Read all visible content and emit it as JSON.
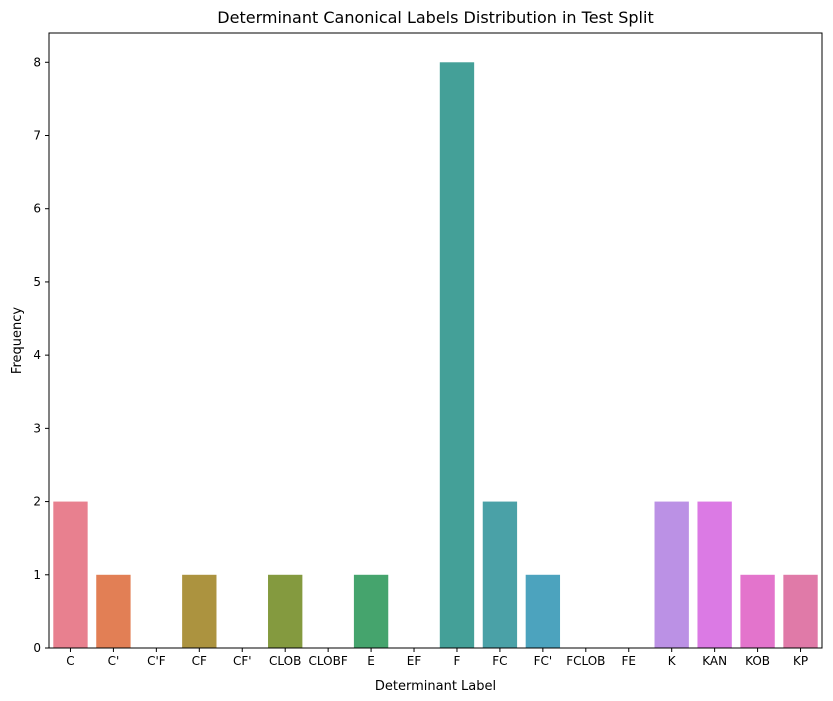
{
  "chart_data": {
    "type": "bar",
    "title": "Determinant Canonical Labels Distribution in Test Split",
    "xlabel": "Determinant Label",
    "ylabel": "Frequency",
    "categories": [
      "C",
      "C'",
      "C'F",
      "CF",
      "CF'",
      "CLOB",
      "CLOBF",
      "E",
      "EF",
      "F",
      "FC",
      "FC'",
      "FCLOB",
      "FE",
      "K",
      "KAN",
      "KOB",
      "KP"
    ],
    "values": [
      2,
      1,
      0,
      1,
      0,
      1,
      0,
      1,
      0,
      8,
      2,
      1,
      0,
      0,
      2,
      2,
      1,
      1
    ],
    "colors": [
      "#e8808f",
      "#e27f55",
      "#c09740",
      "#ac933f",
      "#99993c",
      "#849a3f",
      "#6a9b3f",
      "#45a46d",
      "#48a48e",
      "#44a098",
      "#4aa1a7",
      "#4ca3be",
      "#5b9bd5",
      "#8a8fe0",
      "#bb91e5",
      "#db7ae4",
      "#e374cc",
      "#e07aa8"
    ],
    "yticks": [
      "0",
      "1",
      "2",
      "3",
      "4",
      "5",
      "6",
      "7",
      "8"
    ],
    "ylim": [
      0,
      8.4
    ],
    "grid": false,
    "legend": "none"
  }
}
